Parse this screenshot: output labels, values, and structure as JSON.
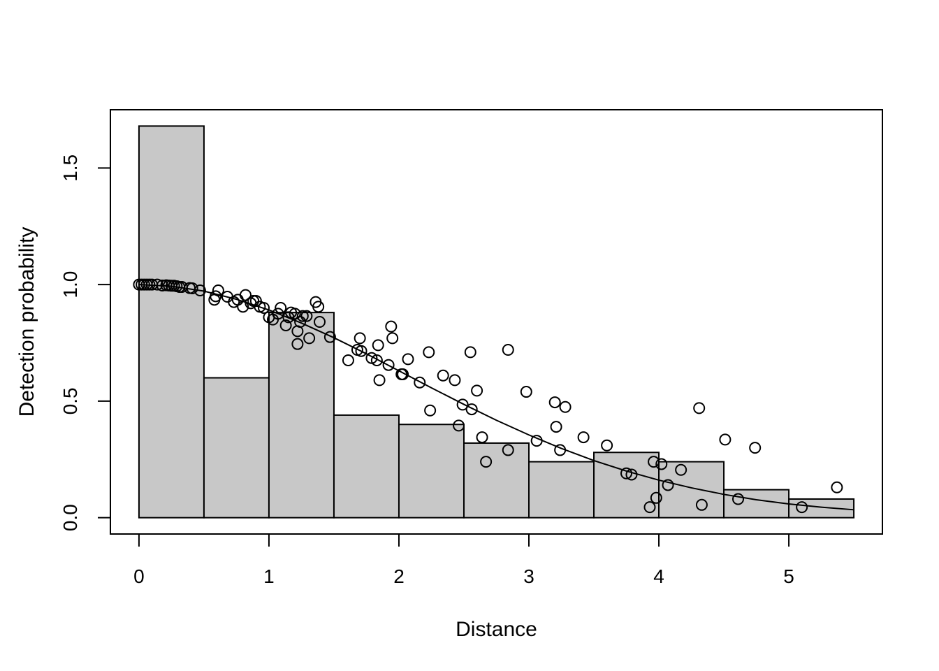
{
  "chart_data": {
    "type": "bar",
    "xlabel": "Distance",
    "ylabel": "Detection probability",
    "xlim": [
      -0.22,
      5.72
    ],
    "ylim": [
      -0.07,
      1.75
    ],
    "x_ticks": [
      0,
      1,
      2,
      3,
      4,
      5
    ],
    "y_ticks": [
      0.0,
      0.5,
      1.0,
      1.5
    ],
    "x_tick_labels": [
      "0",
      "1",
      "2",
      "3",
      "4",
      "5"
    ],
    "y_tick_labels": [
      "0.0",
      "0.5",
      "1.0",
      "1.5"
    ],
    "histogram": {
      "bin_edges": [
        0,
        0.5,
        1.0,
        1.5,
        2.0,
        2.5,
        3.0,
        3.5,
        4.0,
        4.5,
        5.0,
        5.5
      ],
      "values": [
        1.68,
        0.6,
        0.88,
        0.44,
        0.4,
        0.32,
        0.24,
        0.28,
        0.24,
        0.12,
        0.08
      ],
      "fill": "#c8c8c8"
    },
    "curve": {
      "type": "half-normal",
      "x": [
        0,
        0.25,
        0.5,
        0.75,
        1.0,
        1.25,
        1.5,
        1.75,
        2.0,
        2.25,
        2.5,
        2.75,
        3.0,
        3.25,
        3.5,
        3.75,
        4.0,
        4.25,
        4.5,
        4.75,
        5.0,
        5.25,
        5.5
      ],
      "y": [
        1.0,
        0.993,
        0.972,
        0.937,
        0.891,
        0.835,
        0.772,
        0.703,
        0.63,
        0.557,
        0.486,
        0.418,
        0.355,
        0.297,
        0.245,
        0.2,
        0.161,
        0.128,
        0.1,
        0.077,
        0.059,
        0.045,
        0.034
      ]
    },
    "points": [
      [
        0.0,
        1.0
      ],
      [
        0.02,
        1.0
      ],
      [
        0.04,
        1.0
      ],
      [
        0.06,
        1.0
      ],
      [
        0.08,
        1.0
      ],
      [
        0.1,
        1.0
      ],
      [
        0.14,
        1.0
      ],
      [
        0.18,
        0.996
      ],
      [
        0.21,
        0.997
      ],
      [
        0.23,
        0.996
      ],
      [
        0.25,
        0.995
      ],
      [
        0.27,
        0.995
      ],
      [
        0.29,
        0.993
      ],
      [
        0.31,
        0.99
      ],
      [
        0.33,
        0.99
      ],
      [
        0.39,
        0.985
      ],
      [
        0.41,
        0.984
      ],
      [
        0.47,
        0.975
      ],
      [
        0.58,
        0.935
      ],
      [
        0.59,
        0.95
      ],
      [
        0.61,
        0.975
      ],
      [
        0.68,
        0.948
      ],
      [
        0.73,
        0.925
      ],
      [
        0.76,
        0.935
      ],
      [
        0.8,
        0.905
      ],
      [
        0.82,
        0.955
      ],
      [
        0.86,
        0.92
      ],
      [
        0.88,
        0.93
      ],
      [
        0.9,
        0.93
      ],
      [
        0.93,
        0.905
      ],
      [
        0.96,
        0.9
      ],
      [
        1.0,
        0.86
      ],
      [
        1.03,
        0.85
      ],
      [
        1.07,
        0.875
      ],
      [
        1.09,
        0.9
      ],
      [
        1.13,
        0.825
      ],
      [
        1.15,
        0.86
      ],
      [
        1.17,
        0.88
      ],
      [
        1.2,
        0.875
      ],
      [
        1.22,
        0.8
      ],
      [
        1.22,
        0.745
      ],
      [
        1.24,
        0.84
      ],
      [
        1.26,
        0.865
      ],
      [
        1.29,
        0.865
      ],
      [
        1.31,
        0.77
      ],
      [
        1.36,
        0.925
      ],
      [
        1.38,
        0.905
      ],
      [
        1.39,
        0.84
      ],
      [
        1.47,
        0.775
      ],
      [
        1.61,
        0.675
      ],
      [
        1.68,
        0.72
      ],
      [
        1.7,
        0.77
      ],
      [
        1.71,
        0.715
      ],
      [
        1.79,
        0.685
      ],
      [
        1.83,
        0.675
      ],
      [
        1.84,
        0.74
      ],
      [
        1.85,
        0.59
      ],
      [
        1.92,
        0.655
      ],
      [
        1.94,
        0.82
      ],
      [
        1.95,
        0.77
      ],
      [
        2.02,
        0.615
      ],
      [
        2.03,
        0.615
      ],
      [
        2.07,
        0.68
      ],
      [
        2.16,
        0.58
      ],
      [
        2.23,
        0.71
      ],
      [
        2.24,
        0.46
      ],
      [
        2.34,
        0.61
      ],
      [
        2.43,
        0.59
      ],
      [
        2.46,
        0.395
      ],
      [
        2.49,
        0.485
      ],
      [
        2.55,
        0.71
      ],
      [
        2.56,
        0.465
      ],
      [
        2.6,
        0.545
      ],
      [
        2.64,
        0.345
      ],
      [
        2.67,
        0.24
      ],
      [
        2.84,
        0.29
      ],
      [
        2.84,
        0.72
      ],
      [
        2.98,
        0.54
      ],
      [
        3.06,
        0.33
      ],
      [
        3.2,
        0.495
      ],
      [
        3.21,
        0.39
      ],
      [
        3.24,
        0.29
      ],
      [
        3.28,
        0.475
      ],
      [
        3.42,
        0.345
      ],
      [
        3.6,
        0.31
      ],
      [
        3.75,
        0.19
      ],
      [
        3.79,
        0.185
      ],
      [
        3.93,
        0.045
      ],
      [
        3.96,
        0.24
      ],
      [
        3.98,
        0.085
      ],
      [
        4.02,
        0.23
      ],
      [
        4.07,
        0.14
      ],
      [
        4.17,
        0.205
      ],
      [
        4.31,
        0.47
      ],
      [
        4.33,
        0.055
      ],
      [
        4.51,
        0.335
      ],
      [
        4.61,
        0.08
      ],
      [
        4.74,
        0.3
      ],
      [
        5.1,
        0.045
      ],
      [
        5.37,
        0.13
      ]
    ]
  }
}
